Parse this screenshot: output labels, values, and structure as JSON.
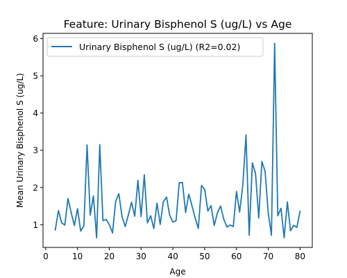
{
  "chart_data": {
    "type": "line",
    "title": "Feature: Urinary Bisphenol S (ug/L) vs Age",
    "xlabel": "Age",
    "ylabel": "Mean Urinary Bisphenol S (ug/L)",
    "xlim": [
      -0.85,
      83.85
    ],
    "ylim": [
      0.39,
      6.14
    ],
    "xticks": [
      0,
      10,
      20,
      30,
      40,
      50,
      60,
      70,
      80
    ],
    "yticks": [
      1,
      2,
      3,
      4,
      5,
      6
    ],
    "legend_position": "top-left",
    "grid": false,
    "series": [
      {
        "name": "Urinary Bisphenol S (ug/L) (R2=0.02)",
        "color": "#1f77b4",
        "x": [
          3,
          4,
          5,
          6,
          7,
          8,
          9,
          10,
          11,
          12,
          13,
          14,
          15,
          16,
          17,
          18,
          19,
          20,
          21,
          22,
          23,
          24,
          25,
          26,
          27,
          28,
          29,
          30,
          31,
          32,
          33,
          34,
          35,
          36,
          37,
          38,
          39,
          40,
          41,
          42,
          43,
          44,
          45,
          46,
          47,
          48,
          49,
          50,
          51,
          52,
          53,
          54,
          55,
          56,
          57,
          58,
          59,
          60,
          61,
          62,
          63,
          64,
          65,
          66,
          67,
          68,
          69,
          70,
          71,
          72,
          73,
          74,
          75,
          76,
          77,
          78,
          79,
          80
        ],
        "y": [
          0.86,
          1.38,
          1.05,
          0.99,
          1.7,
          1.33,
          0.98,
          1.43,
          0.83,
          0.97,
          3.14,
          1.26,
          1.77,
          0.65,
          3.15,
          1.11,
          1.14,
          1.0,
          0.78,
          1.63,
          1.83,
          1.22,
          0.95,
          1.27,
          1.6,
          1.23,
          2.19,
          1.22,
          2.34,
          1.05,
          1.24,
          0.9,
          1.58,
          1.01,
          1.62,
          1.74,
          1.25,
          1.07,
          1.11,
          2.13,
          2.13,
          1.33,
          1.82,
          1.51,
          1.18,
          0.9,
          2.05,
          1.95,
          1.37,
          1.51,
          0.98,
          1.32,
          1.5,
          1.15,
          0.94,
          0.99,
          0.95,
          1.89,
          1.34,
          2.07,
          3.41,
          0.72,
          2.66,
          2.37,
          1.18,
          2.7,
          2.43,
          1.31,
          0.72,
          5.87,
          1.24,
          1.44,
          0.65,
          1.61,
          0.84,
          0.98,
          0.93,
          1.36
        ]
      }
    ]
  }
}
